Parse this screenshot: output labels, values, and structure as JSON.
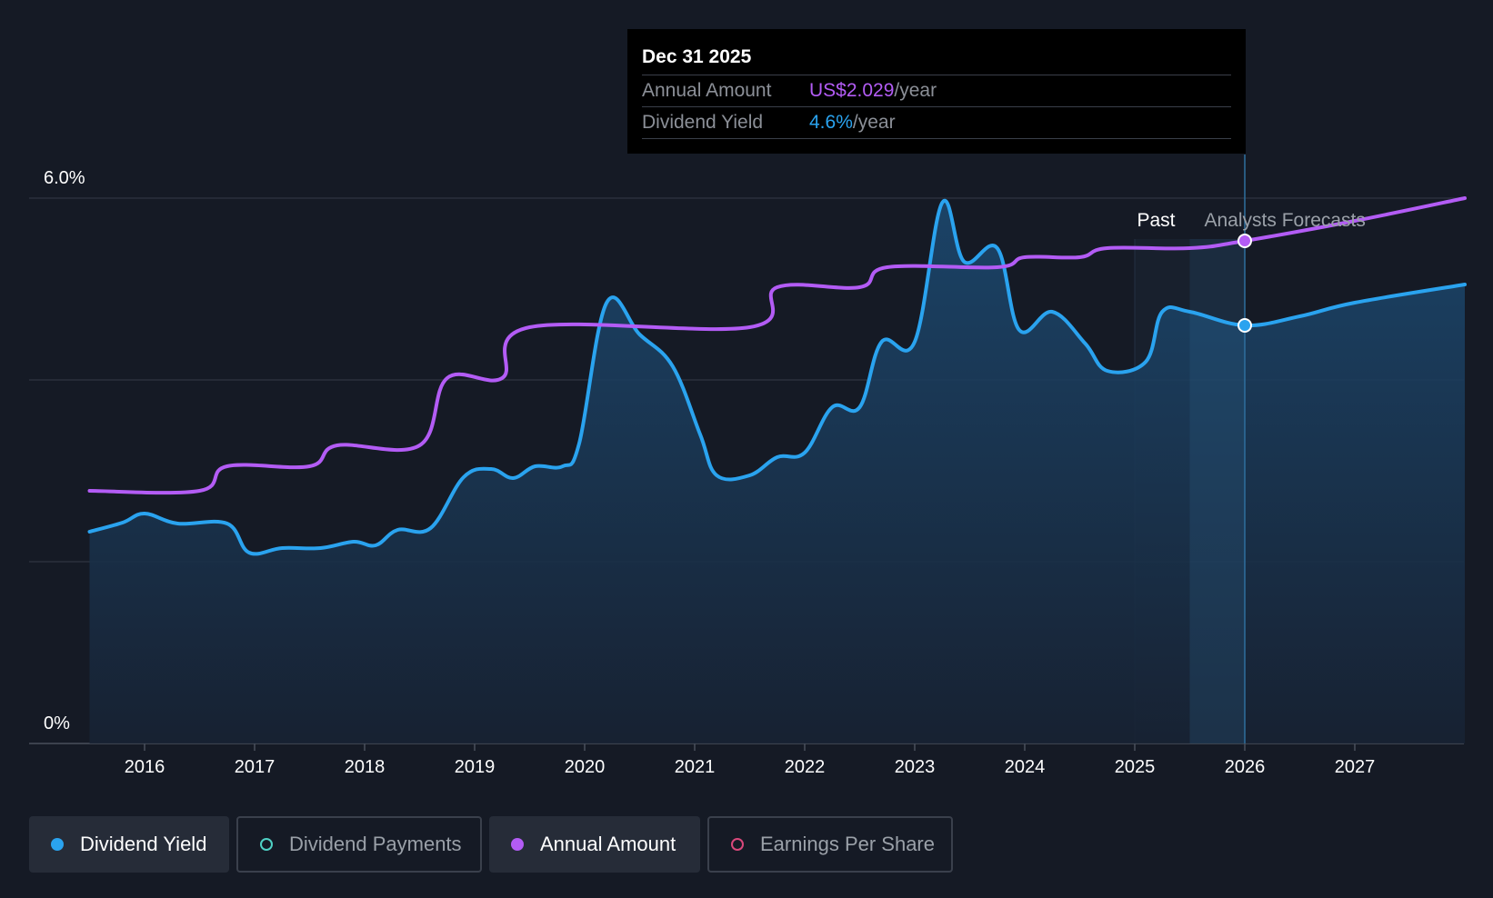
{
  "tooltip": {
    "date": "Dec 31 2025",
    "rows": [
      {
        "label": "Annual Amount",
        "value": "US$2.029",
        "unit": "/year"
      },
      {
        "label": "Dividend Yield",
        "value": "4.6%",
        "unit": "/year"
      }
    ]
  },
  "legend": [
    {
      "label": "Dividend Yield",
      "color": "#2aa3ef",
      "active": true
    },
    {
      "label": "Dividend Payments",
      "color": "#4fd1c5",
      "active": false
    },
    {
      "label": "Annual Amount",
      "color": "#b35cf5",
      "active": true
    },
    {
      "label": "Earnings Per Share",
      "color": "#d9487b",
      "active": false
    }
  ],
  "chart_data": {
    "type": "line",
    "ylim": [
      0,
      6.0
    ],
    "xlim": [
      2015.0,
      2028.0
    ],
    "y_tick_labels": [
      "6.0%",
      "0%"
    ],
    "x_ticks": [
      2016,
      2017,
      2018,
      2019,
      2020,
      2021,
      2022,
      2023,
      2024,
      2025,
      2026,
      2027
    ],
    "past_label": "Past",
    "forecast_label": "Analysts Forecasts",
    "forecast_start": 2025.5,
    "selected_x": 2026.0,
    "grid": true,
    "colors": {
      "yield": "#2aa3ef",
      "amount": "#b35cf5"
    },
    "series": [
      {
        "name": "Dividend Yield",
        "points": [
          [
            2015.5,
            2.33
          ],
          [
            2015.8,
            2.43
          ],
          [
            2016.0,
            2.53
          ],
          [
            2016.3,
            2.42
          ],
          [
            2016.75,
            2.42
          ],
          [
            2016.95,
            2.1
          ],
          [
            2017.25,
            2.15
          ],
          [
            2017.6,
            2.15
          ],
          [
            2017.9,
            2.22
          ],
          [
            2018.1,
            2.18
          ],
          [
            2018.3,
            2.35
          ],
          [
            2018.6,
            2.37
          ],
          [
            2018.9,
            2.93
          ],
          [
            2019.15,
            3.02
          ],
          [
            2019.35,
            2.92
          ],
          [
            2019.55,
            3.05
          ],
          [
            2019.8,
            3.05
          ],
          [
            2019.95,
            3.3
          ],
          [
            2020.2,
            4.85
          ],
          [
            2020.5,
            4.5
          ],
          [
            2020.8,
            4.15
          ],
          [
            2021.05,
            3.4
          ],
          [
            2021.2,
            2.95
          ],
          [
            2021.5,
            2.95
          ],
          [
            2021.75,
            3.15
          ],
          [
            2022.0,
            3.2
          ],
          [
            2022.25,
            3.7
          ],
          [
            2022.5,
            3.7
          ],
          [
            2022.7,
            4.42
          ],
          [
            2023.0,
            4.42
          ],
          [
            2023.25,
            5.95
          ],
          [
            2023.45,
            5.3
          ],
          [
            2023.75,
            5.45
          ],
          [
            2023.95,
            4.55
          ],
          [
            2024.25,
            4.75
          ],
          [
            2024.55,
            4.4
          ],
          [
            2024.75,
            4.1
          ],
          [
            2025.1,
            4.2
          ],
          [
            2025.25,
            4.75
          ],
          [
            2025.5,
            4.75
          ],
          [
            2026.0,
            4.6
          ],
          [
            2026.5,
            4.7
          ],
          [
            2027.0,
            4.85
          ],
          [
            2028.0,
            5.05
          ]
        ]
      },
      {
        "name": "Annual Amount",
        "points": [
          [
            2015.5,
            2.78
          ],
          [
            2016.5,
            2.78
          ],
          [
            2016.75,
            3.05
          ],
          [
            2017.5,
            3.05
          ],
          [
            2017.75,
            3.28
          ],
          [
            2018.5,
            3.28
          ],
          [
            2018.75,
            4.02
          ],
          [
            2019.25,
            4.02
          ],
          [
            2019.5,
            4.58
          ],
          [
            2021.5,
            4.58
          ],
          [
            2021.75,
            5.02
          ],
          [
            2022.5,
            5.02
          ],
          [
            2022.75,
            5.24
          ],
          [
            2023.75,
            5.24
          ],
          [
            2024.0,
            5.35
          ],
          [
            2024.5,
            5.35
          ],
          [
            2024.75,
            5.45
          ],
          [
            2025.5,
            5.45
          ],
          [
            2026.0,
            5.53
          ],
          [
            2027.0,
            5.75
          ],
          [
            2028.0,
            6.0
          ]
        ]
      }
    ]
  }
}
